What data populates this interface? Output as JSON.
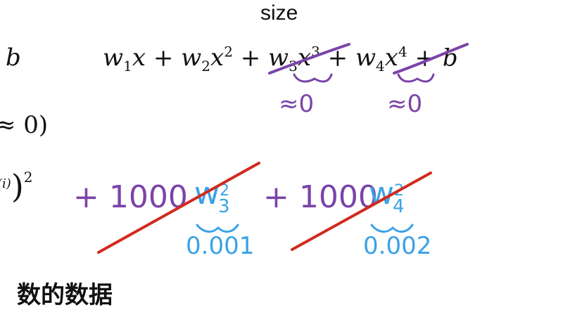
{
  "slide": {
    "title_fragment": "size",
    "left_fragments": {
      "row1": "b",
      "row2": "≈ 0)",
      "row3_sup": "(i)",
      "row3_paren": ")",
      "row3_pow": "2"
    },
    "equation": {
      "w1": "w",
      "w1_sub": "1",
      "x1": "x",
      "plus1": "+",
      "w2": "w",
      "w2_sub": "2",
      "x2": "x",
      "x2_pow": "2",
      "plus2": "+",
      "w3": "w",
      "w3_sub": "3",
      "x3": "x",
      "x3_pow": "3",
      "plus3": "+",
      "w4": "w",
      "w4_sub": "4",
      "x4": "x",
      "x4_pow": "4",
      "plus4": "+",
      "b": "b"
    },
    "handwritten": {
      "approx_zero_1": "≈0",
      "approx_zero_2": "≈0",
      "plus_a": "+",
      "coef_a": "1000",
      "w_a": "w",
      "w_a_sub": "3",
      "w_a_pow": "2",
      "plus_b": "+",
      "coef_b": "1000",
      "w_b": "w",
      "w_b_sub": "4",
      "w_b_pow": "2",
      "value_a": "0.001",
      "value_b": "0.002"
    },
    "bottom_partial": "数的数据"
  },
  "colors": {
    "ink": "#111111",
    "purple": "#7a44a8",
    "blue": "#3aa2e6",
    "red": "#d12a1e"
  }
}
